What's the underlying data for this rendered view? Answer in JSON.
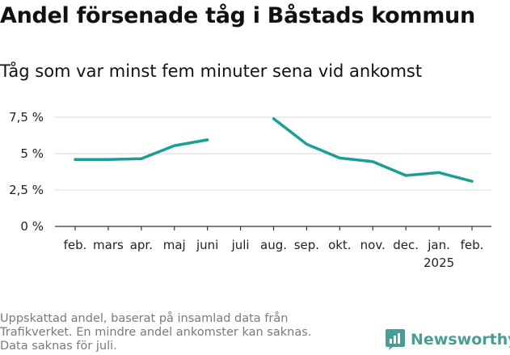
{
  "title": "Andel försenade tåg i Båstads kommun",
  "subtitle": "Tåg som var minst fem minuter sena vid ankomst",
  "footnote": [
    "Uppskattad andel, baserat på insamlad data från",
    "Trafikverket. En mindre andel ankomster kan saknas.",
    "Data saknas för juli."
  ],
  "brand": {
    "name": "Newsworthy",
    "icon": "newsworthy-logo-icon",
    "color": "#4a9d97"
  },
  "chart_data": {
    "type": "line",
    "categories": [
      "feb.",
      "mars",
      "apr.",
      "maj",
      "juni",
      "juli",
      "aug.",
      "sep.",
      "okt.",
      "nov.",
      "dec.",
      "jan.",
      "feb."
    ],
    "year_label": {
      "text": "2025",
      "under_category_index": 11
    },
    "series": [
      {
        "values": [
          4.6,
          4.6,
          4.65,
          5.55,
          5.95,
          null,
          7.4,
          5.65,
          4.7,
          4.45,
          3.5,
          3.7,
          3.1
        ],
        "color": "#1a9e96"
      }
    ],
    "y_ticks": [
      0,
      2.5,
      5,
      7.5
    ],
    "y_tick_labels": [
      "0 %",
      "2,5 %",
      "5 %",
      "7,5 %"
    ],
    "ylim": [
      0,
      8
    ],
    "grid": true,
    "xlabel": "",
    "ylabel": ""
  }
}
